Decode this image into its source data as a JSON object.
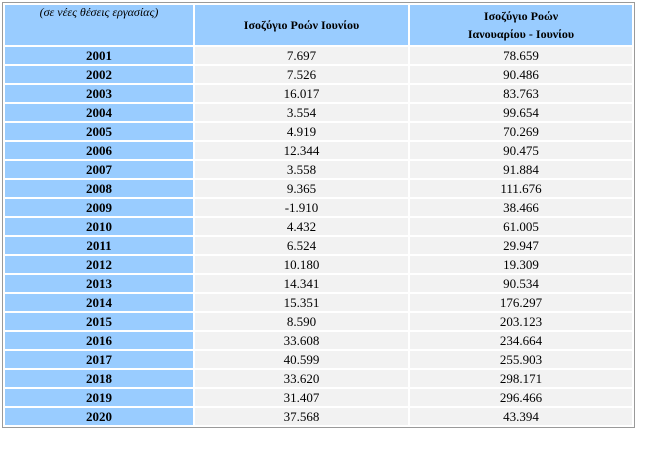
{
  "table": {
    "header": {
      "unit_note": "(σε νέες θέσεις εργασίας)",
      "col_june": "Ισοζύγιο Ροών Ιουνίου",
      "col_janjune_line1": "Ισοζύγιο Ροών",
      "col_janjune_line2": "Ιανουαρίου -  Ιουνίου"
    },
    "rows": [
      {
        "year": "2001",
        "june": "7.697",
        "jan_june": "78.659"
      },
      {
        "year": "2002",
        "june": "7.526",
        "jan_june": "90.486"
      },
      {
        "year": "2003",
        "june": "16.017",
        "jan_june": "83.763"
      },
      {
        "year": "2004",
        "june": "3.554",
        "jan_june": "99.654"
      },
      {
        "year": "2005",
        "june": "4.919",
        "jan_june": "70.269"
      },
      {
        "year": "2006",
        "june": "12.344",
        "jan_june": "90.475"
      },
      {
        "year": "2007",
        "june": "3.558",
        "jan_june": "91.884"
      },
      {
        "year": "2008",
        "june": "9.365",
        "jan_june": "111.676"
      },
      {
        "year": "2009",
        "june": "-1.910",
        "jan_june": "38.466"
      },
      {
        "year": "2010",
        "june": "4.432",
        "jan_june": "61.005"
      },
      {
        "year": "2011",
        "june": "6.524",
        "jan_june": "29.947"
      },
      {
        "year": "2012",
        "june": "10.180",
        "jan_june": "19.309"
      },
      {
        "year": "2013",
        "june": "14.341",
        "jan_june": "90.534"
      },
      {
        "year": "2014",
        "june": "15.351",
        "jan_june": "176.297"
      },
      {
        "year": "2015",
        "june": "8.590",
        "jan_june": "203.123"
      },
      {
        "year": "2016",
        "june": "33.608",
        "jan_june": "234.664"
      },
      {
        "year": "2017",
        "june": "40.599",
        "jan_june": "255.903"
      },
      {
        "year": "2018",
        "june": "33.620",
        "jan_june": "298.171"
      },
      {
        "year": "2019",
        "june": "31.407",
        "jan_june": "296.466"
      },
      {
        "year": "2020",
        "june": "37.568",
        "jan_june": "43.394"
      }
    ],
    "colors": {
      "header_bg": "#99ccff",
      "year_bg": "#99ccff",
      "value_bg": "#f2f2f2"
    }
  }
}
